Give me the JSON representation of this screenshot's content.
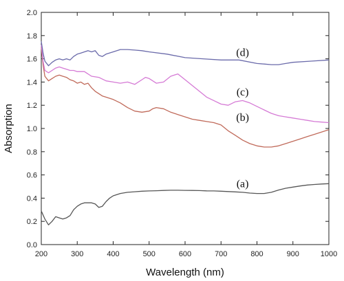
{
  "chart_data": {
    "type": "line",
    "title": "",
    "xlabel": "Wavelength (nm)",
    "ylabel": "Absorption",
    "xlim": [
      200,
      1000
    ],
    "ylim": [
      0,
      2.0
    ],
    "x_ticks": [
      200,
      300,
      400,
      500,
      600,
      700,
      800,
      900,
      1000
    ],
    "y_ticks": [
      0.0,
      0.2,
      0.4,
      0.6,
      0.8,
      1.0,
      1.2,
      1.4,
      1.6,
      1.8,
      2.0
    ],
    "x_tick_labels": [
      "200",
      "300",
      "400",
      "500",
      "600",
      "700",
      "800",
      "900",
      "1000"
    ],
    "y_tick_labels": [
      "0.0",
      "0.2",
      "0.4",
      "0.6",
      "0.8",
      "1.0",
      "1.2",
      "1.4",
      "1.6",
      "1.8",
      "2.0"
    ],
    "grid": false,
    "series": [
      {
        "name": "(a)",
        "color": "#555555",
        "x": [
          200,
          210,
          220,
          230,
          240,
          250,
          260,
          270,
          280,
          290,
          300,
          310,
          320,
          330,
          340,
          350,
          360,
          370,
          380,
          390,
          400,
          420,
          440,
          460,
          480,
          500,
          520,
          540,
          560,
          580,
          600,
          620,
          640,
          660,
          680,
          700,
          720,
          740,
          760,
          780,
          800,
          820,
          840,
          860,
          880,
          900,
          920,
          940,
          960,
          980,
          1000
        ],
        "y": [
          0.29,
          0.22,
          0.17,
          0.2,
          0.24,
          0.23,
          0.22,
          0.23,
          0.25,
          0.3,
          0.33,
          0.35,
          0.36,
          0.36,
          0.36,
          0.35,
          0.32,
          0.33,
          0.37,
          0.4,
          0.42,
          0.44,
          0.45,
          0.455,
          0.46,
          0.462,
          0.464,
          0.466,
          0.468,
          0.468,
          0.467,
          0.466,
          0.465,
          0.463,
          0.462,
          0.46,
          0.457,
          0.454,
          0.45,
          0.444,
          0.44,
          0.44,
          0.45,
          0.47,
          0.485,
          0.495,
          0.505,
          0.513,
          0.518,
          0.522,
          0.525
        ]
      },
      {
        "name": "(b)",
        "color": "#c06a5a",
        "x": [
          200,
          205,
          210,
          220,
          230,
          240,
          250,
          260,
          270,
          280,
          290,
          300,
          310,
          320,
          330,
          340,
          350,
          360,
          370,
          380,
          400,
          420,
          440,
          460,
          480,
          500,
          510,
          520,
          540,
          560,
          580,
          600,
          620,
          640,
          660,
          680,
          700,
          720,
          740,
          760,
          780,
          800,
          820,
          840,
          860,
          880,
          900,
          920,
          940,
          960,
          980,
          1000
        ],
        "y": [
          1.7,
          1.55,
          1.45,
          1.41,
          1.43,
          1.45,
          1.46,
          1.45,
          1.44,
          1.42,
          1.41,
          1.39,
          1.4,
          1.38,
          1.39,
          1.35,
          1.32,
          1.3,
          1.28,
          1.27,
          1.25,
          1.22,
          1.18,
          1.15,
          1.14,
          1.15,
          1.17,
          1.18,
          1.17,
          1.14,
          1.12,
          1.1,
          1.08,
          1.07,
          1.06,
          1.05,
          1.03,
          0.98,
          0.94,
          0.9,
          0.87,
          0.85,
          0.84,
          0.84,
          0.85,
          0.87,
          0.89,
          0.91,
          0.93,
          0.95,
          0.97,
          0.99
        ]
      },
      {
        "name": "(c)",
        "color": "#d57ad5",
        "x": [
          200,
          205,
          210,
          220,
          230,
          240,
          250,
          260,
          270,
          280,
          290,
          300,
          320,
          340,
          360,
          380,
          400,
          420,
          440,
          460,
          480,
          490,
          500,
          520,
          540,
          560,
          580,
          600,
          620,
          640,
          660,
          680,
          700,
          720,
          740,
          760,
          780,
          800,
          820,
          840,
          860,
          880,
          900,
          920,
          940,
          960,
          980,
          1000
        ],
        "y": [
          1.72,
          1.58,
          1.5,
          1.48,
          1.5,
          1.52,
          1.53,
          1.52,
          1.51,
          1.5,
          1.5,
          1.49,
          1.49,
          1.45,
          1.44,
          1.41,
          1.4,
          1.39,
          1.4,
          1.38,
          1.42,
          1.44,
          1.43,
          1.39,
          1.4,
          1.45,
          1.47,
          1.42,
          1.37,
          1.32,
          1.27,
          1.24,
          1.21,
          1.2,
          1.23,
          1.24,
          1.22,
          1.19,
          1.16,
          1.13,
          1.11,
          1.1,
          1.09,
          1.08,
          1.07,
          1.06,
          1.055,
          1.05
        ]
      },
      {
        "name": "(d)",
        "color": "#6a6aaa",
        "x": [
          200,
          205,
          210,
          220,
          230,
          240,
          250,
          260,
          270,
          280,
          290,
          300,
          310,
          320,
          330,
          340,
          350,
          360,
          370,
          380,
          400,
          420,
          440,
          460,
          480,
          500,
          550,
          600,
          650,
          700,
          750,
          800,
          820,
          840,
          860,
          880,
          900,
          950,
          1000
        ],
        "y": [
          1.75,
          1.65,
          1.58,
          1.54,
          1.57,
          1.59,
          1.6,
          1.59,
          1.6,
          1.59,
          1.62,
          1.64,
          1.65,
          1.66,
          1.67,
          1.66,
          1.67,
          1.63,
          1.62,
          1.64,
          1.66,
          1.68,
          1.68,
          1.675,
          1.67,
          1.66,
          1.64,
          1.61,
          1.6,
          1.59,
          1.59,
          1.56,
          1.555,
          1.55,
          1.55,
          1.56,
          1.57,
          1.58,
          1.59
        ]
      }
    ],
    "curve_labels": [
      {
        "text": "(d)",
        "x": 760,
        "y": 1.66
      },
      {
        "text": "(c)",
        "x": 760,
        "y": 1.32
      },
      {
        "text": "(b)",
        "x": 760,
        "y": 1.1
      },
      {
        "text": "(a)",
        "x": 760,
        "y": 0.53
      }
    ]
  }
}
